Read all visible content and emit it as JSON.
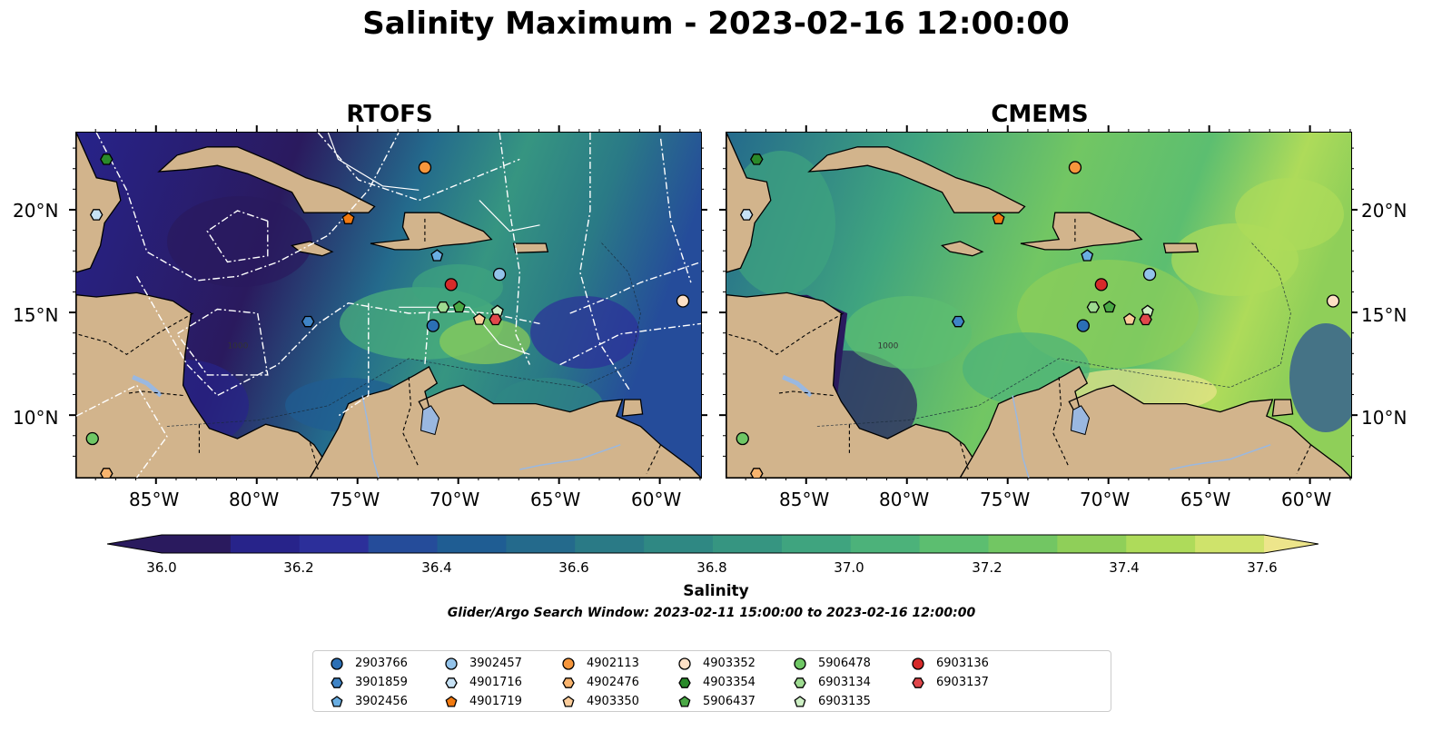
{
  "title": "Salinity Maximum - 2023-02-16 12:00:00",
  "panels": [
    {
      "title": "RTOFS"
    },
    {
      "title": "CMEMS"
    }
  ],
  "axes": {
    "x_ticks": [
      "85°W",
      "80°W",
      "75°W",
      "70°W",
      "65°W",
      "60°W"
    ],
    "y_ticks": [
      "20°N",
      "15°N",
      "10°N"
    ]
  },
  "colorbar": {
    "label": "Salinity",
    "ticks": [
      "36.0",
      "36.2",
      "36.4",
      "36.6",
      "36.8",
      "37.0",
      "37.2",
      "37.4",
      "37.6"
    ],
    "colors": [
      "#2a1a5e",
      "#27238a",
      "#2c2f9a",
      "#254c9a",
      "#1f5d93",
      "#246a8c",
      "#2a7a86",
      "#2f8883",
      "#369581",
      "#3fa47f",
      "#4cb27a",
      "#5cbe70",
      "#72c663",
      "#8fcf59",
      "#aedb5a",
      "#cfe36b",
      "#ede58b"
    ]
  },
  "contour_labels": [
    "1000"
  ],
  "search_window": "Glider/Argo Search Window: 2023-02-11 15:00:00 to 2023-02-16 12:00:00",
  "legend": [
    {
      "id": "2903766",
      "marker": "circle",
      "color": "#2b6fb5"
    },
    {
      "id": "3901859",
      "marker": "hexagon",
      "color": "#3f84c6"
    },
    {
      "id": "3902456",
      "marker": "pentagon",
      "color": "#6aaee2"
    },
    {
      "id": "3902457",
      "marker": "circle",
      "color": "#93c3ea"
    },
    {
      "id": "4901716",
      "marker": "hexagon",
      "color": "#c7e2f5"
    },
    {
      "id": "4901719",
      "marker": "pentagon",
      "color": "#f27a10"
    },
    {
      "id": "4902113",
      "marker": "circle",
      "color": "#f6963c"
    },
    {
      "id": "4902476",
      "marker": "hexagon",
      "color": "#f9b46e"
    },
    {
      "id": "4903350",
      "marker": "pentagon",
      "color": "#fbcc9a"
    },
    {
      "id": "4903352",
      "marker": "circle",
      "color": "#fde0c5"
    },
    {
      "id": "4903354",
      "marker": "hexagon",
      "color": "#2a8a2a"
    },
    {
      "id": "5906437",
      "marker": "pentagon",
      "color": "#4aa845"
    },
    {
      "id": "5906478",
      "marker": "circle",
      "color": "#6fc765"
    },
    {
      "id": "6903134",
      "marker": "hexagon",
      "color": "#9edb91"
    },
    {
      "id": "6903135",
      "marker": "pentagon",
      "color": "#cdefc4"
    },
    {
      "id": "6903136",
      "marker": "circle",
      "color": "#d62a2a"
    },
    {
      "id": "6903137",
      "marker": "hexagon",
      "color": "#e0474b"
    }
  ],
  "floats": [
    {
      "id": "2903766",
      "lon": -71.3,
      "lat": 14.4
    },
    {
      "id": "3901859",
      "lon": -77.5,
      "lat": 14.6
    },
    {
      "id": "3902456",
      "lon": -71.1,
      "lat": 17.8
    },
    {
      "id": "3902457",
      "lon": -68.0,
      "lat": 16.9
    },
    {
      "id": "4901716",
      "lon": -88.0,
      "lat": 19.8
    },
    {
      "id": "4901719",
      "lon": -75.5,
      "lat": 19.6
    },
    {
      "id": "4902113",
      "lon": -71.7,
      "lat": 22.1
    },
    {
      "id": "4902476",
      "lon": -87.5,
      "lat": 7.2
    },
    {
      "id": "4903350",
      "lon": -69.0,
      "lat": 14.7
    },
    {
      "id": "4903352",
      "lon": -58.9,
      "lat": 15.6
    },
    {
      "id": "4903354",
      "lon": -87.5,
      "lat": 22.5
    },
    {
      "id": "5906437",
      "lon": -70.0,
      "lat": 15.3
    },
    {
      "id": "5906478",
      "lon": -88.2,
      "lat": 8.9
    },
    {
      "id": "6903134",
      "lon": -70.8,
      "lat": 15.3
    },
    {
      "id": "6903135",
      "lon": -68.1,
      "lat": 15.1
    },
    {
      "id": "6903136",
      "lon": -70.4,
      "lat": 16.4
    },
    {
      "id": "6903137",
      "lon": -68.2,
      "lat": 14.7
    }
  ],
  "map_extent": {
    "lon": [
      -89.0,
      -58.0
    ],
    "lat": [
      7.0,
      23.8
    ]
  }
}
